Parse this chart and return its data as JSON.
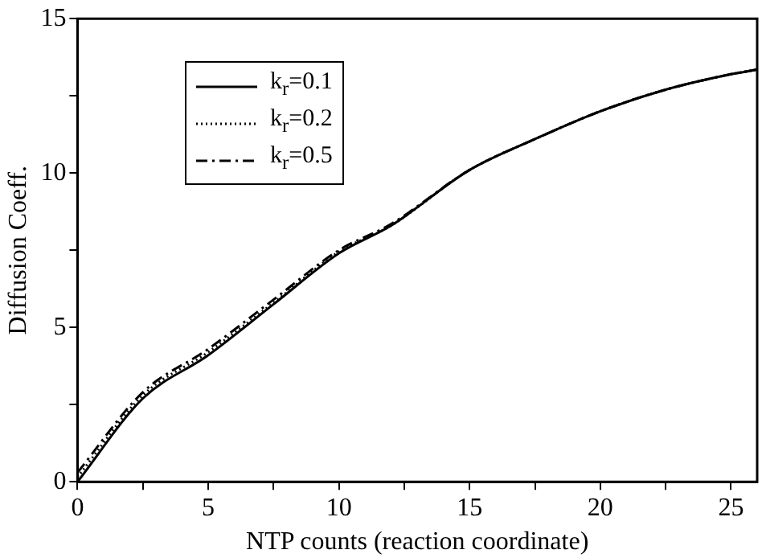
{
  "chart_data": {
    "type": "line",
    "xlabel": "NTP counts (reaction coordinate)",
    "ylabel": "Diffusion Coeff.",
    "x": [
      0,
      2.5,
      5,
      7.5,
      10,
      12,
      15,
      17.5,
      20,
      22.5,
      25,
      26
    ],
    "series": [
      {
        "name": "k$_{r}$=0.1",
        "color": "#000000",
        "line_style": "solid",
        "values": [
          0,
          2.7,
          4.1,
          5.75,
          7.4,
          8.3,
          10.1,
          11.1,
          12.0,
          12.7,
          13.2,
          13.35
        ]
      },
      {
        "name": "k$_{r}$=0.2",
        "color": "#000000",
        "line_style": "dotted",
        "values": [
          0.15,
          2.8,
          4.2,
          5.8,
          7.45,
          8.3,
          10.1,
          11.1,
          12.0,
          12.7,
          13.2,
          13.35
        ]
      },
      {
        "name": "k$_{r}$=0.5",
        "color": "#000000",
        "line_style": "dashed",
        "values": [
          0.3,
          2.9,
          4.3,
          5.9,
          7.5,
          8.35,
          10.1,
          11.1,
          12.0,
          12.7,
          13.2,
          13.35
        ]
      }
    ],
    "xlim": [
      0,
      26
    ],
    "xticks": [
      0,
      {
        "value": 2.5,
        "label": null
      },
      5,
      {
        "value": 7.5,
        "label": null
      },
      10,
      {
        "value": 12.5,
        "label": null
      },
      15,
      {
        "value": 17.5,
        "label": null
      },
      20,
      {
        "value": 22.5,
        "label": null
      },
      25
    ],
    "ylim": [
      0,
      15
    ],
    "yticks": [
      0,
      {
        "value": 2.5,
        "label": null
      },
      5,
      {
        "value": 7.5,
        "label": null
      },
      10,
      {
        "value": 12.5,
        "label": null
      },
      15
    ],
    "grid": false,
    "legend": "top left",
    "marker": "none"
  }
}
